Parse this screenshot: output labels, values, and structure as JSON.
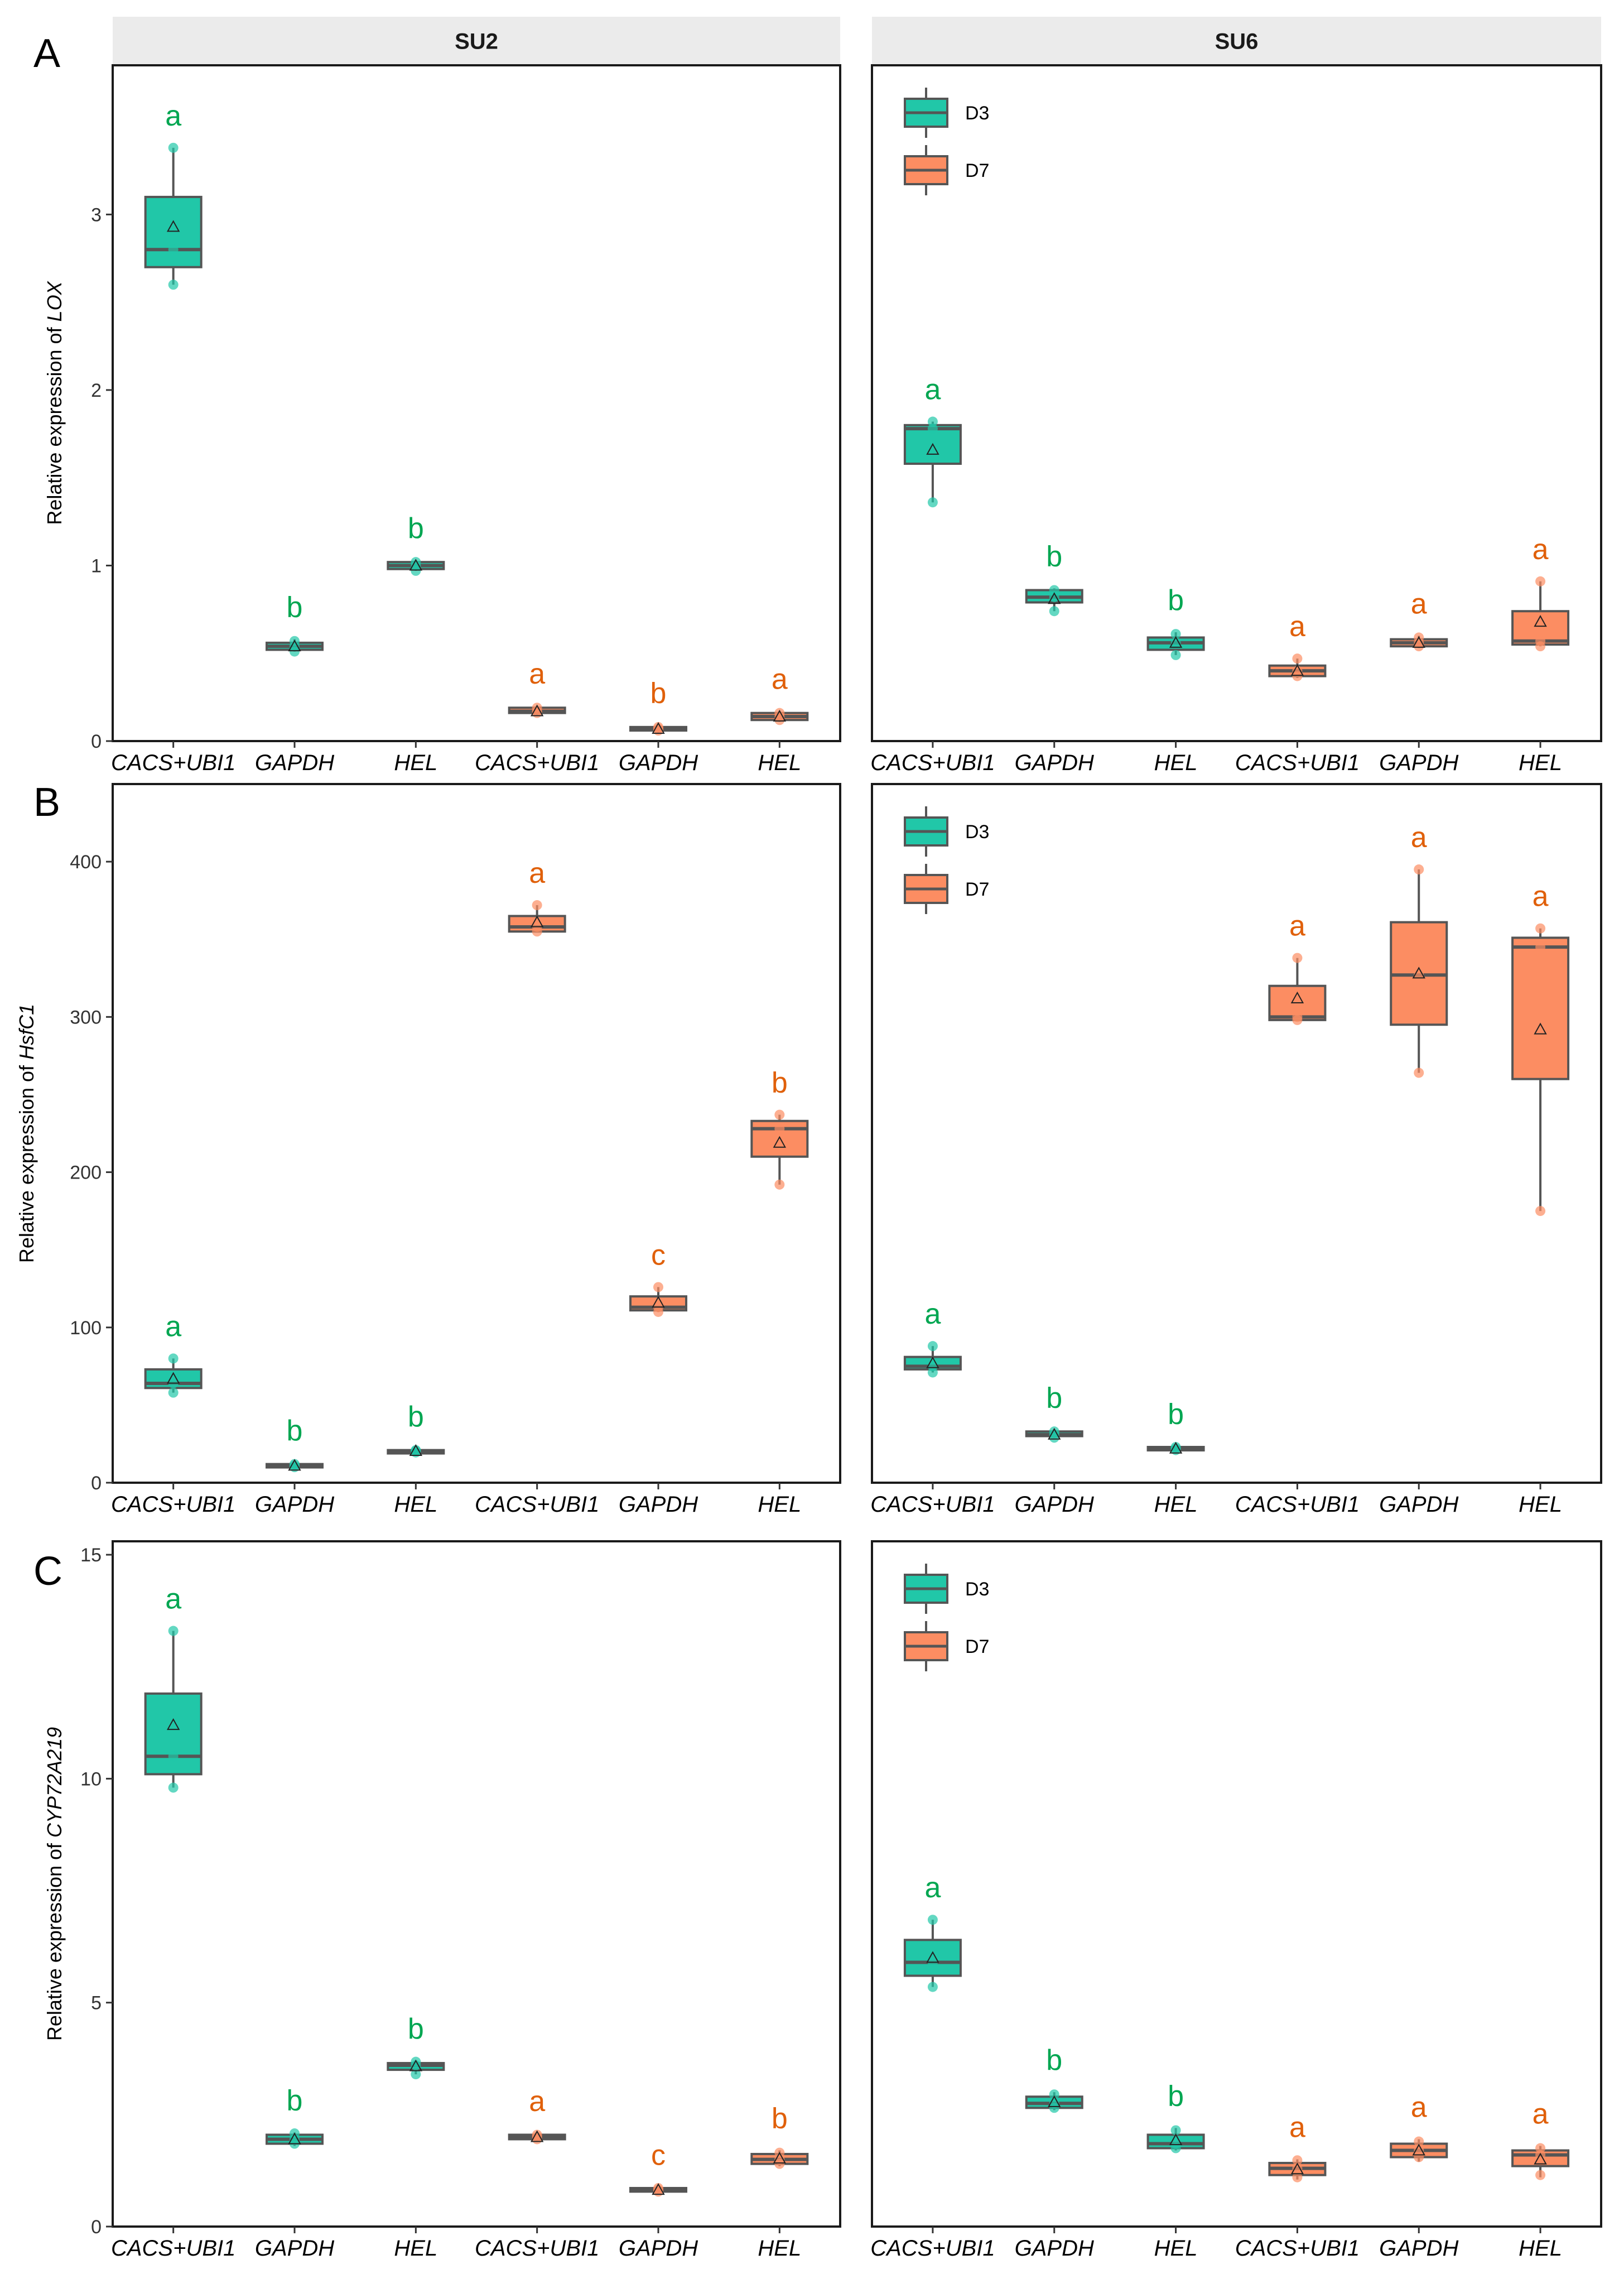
{
  "facet_titles": [
    "SU2",
    "SU6"
  ],
  "panel_letters": [
    "A",
    "B",
    "C"
  ],
  "legend": [
    {
      "label": "D3",
      "color": "#21C7A8"
    },
    {
      "label": "D7",
      "color": "#FC8D62"
    }
  ],
  "colors": {
    "D3": "#21C7A8",
    "D7": "#FC8D62",
    "letter_D3": "#00A651",
    "letter_D7": "#E0600A",
    "box_line": "#555555",
    "strip_bg": "#EBEBEB"
  },
  "categories": [
    "CACS+UBI1",
    "GAPDH",
    "HEL",
    "CACS+UBI1",
    "GAPDH",
    "HEL"
  ],
  "groups": [
    "D3",
    "D3",
    "D3",
    "D7",
    "D7",
    "D7"
  ],
  "chart_data": [
    {
      "type": "box",
      "panel": "A",
      "ylabel": "Relative expression of",
      "ygene": "LOX",
      "ylim": [
        0,
        3.85
      ],
      "yticks": [
        0,
        1,
        2,
        3
      ],
      "ytick_labels": [
        "0",
        "1",
        "2",
        "3"
      ],
      "facets": [
        {
          "title": "SU2",
          "legend": false,
          "boxes": [
            {
              "q1": 2.7,
              "med": 2.8,
              "q3": 3.1,
              "lo": 2.6,
              "hi": 3.38,
              "mean": 2.93,
              "pts": [
                2.6,
                2.8,
                3.38
              ],
              "letter": "a"
            },
            {
              "q1": 0.52,
              "med": 0.54,
              "q3": 0.56,
              "lo": 0.51,
              "hi": 0.58,
              "mean": 0.54,
              "pts": [
                0.51,
                0.54,
                0.57
              ],
              "letter": "b"
            },
            {
              "q1": 0.98,
              "med": 1.0,
              "q3": 1.02,
              "lo": 0.97,
              "hi": 1.03,
              "mean": 1.0,
              "pts": [
                0.97,
                1.0,
                1.02
              ],
              "letter": "b"
            },
            {
              "q1": 0.16,
              "med": 0.17,
              "q3": 0.19,
              "lo": 0.15,
              "hi": 0.2,
              "mean": 0.17,
              "pts": [
                0.16,
                0.17,
                0.19
              ],
              "letter": "a"
            },
            {
              "q1": 0.06,
              "med": 0.07,
              "q3": 0.08,
              "lo": 0.05,
              "hi": 0.09,
              "mean": 0.07,
              "pts": [
                0.06,
                0.07,
                0.08
              ],
              "letter": "b"
            },
            {
              "q1": 0.12,
              "med": 0.14,
              "q3": 0.16,
              "lo": 0.11,
              "hi": 0.17,
              "mean": 0.14,
              "pts": [
                0.12,
                0.14,
                0.16
              ],
              "letter": "a"
            }
          ]
        },
        {
          "title": "SU6",
          "legend": true,
          "boxes": [
            {
              "q1": 1.58,
              "med": 1.78,
              "q3": 1.8,
              "lo": 1.36,
              "hi": 1.82,
              "mean": 1.66,
              "pts": [
                1.36,
                1.78,
                1.82
              ],
              "letter": "a"
            },
            {
              "q1": 0.79,
              "med": 0.82,
              "q3": 0.86,
              "lo": 0.74,
              "hi": 0.87,
              "mean": 0.81,
              "pts": [
                0.74,
                0.82,
                0.86
              ],
              "letter": "b"
            },
            {
              "q1": 0.52,
              "med": 0.56,
              "q3": 0.59,
              "lo": 0.49,
              "hi": 0.62,
              "mean": 0.56,
              "pts": [
                0.49,
                0.56,
                0.61
              ],
              "letter": "b"
            },
            {
              "q1": 0.37,
              "med": 0.4,
              "q3": 0.43,
              "lo": 0.36,
              "hi": 0.47,
              "mean": 0.4,
              "pts": [
                0.37,
                0.4,
                0.47
              ],
              "letter": "a"
            },
            {
              "q1": 0.54,
              "med": 0.56,
              "q3": 0.58,
              "lo": 0.53,
              "hi": 0.6,
              "mean": 0.56,
              "pts": [
                0.54,
                0.56,
                0.59
              ],
              "letter": "a"
            },
            {
              "q1": 0.55,
              "med": 0.57,
              "q3": 0.74,
              "lo": 0.54,
              "hi": 0.91,
              "mean": 0.68,
              "pts": [
                0.54,
                0.57,
                0.91
              ],
              "letter": "a"
            }
          ]
        }
      ]
    },
    {
      "type": "box",
      "panel": "B",
      "ylabel": "Relative expression of",
      "ygene": "HsfC1",
      "ylim": [
        0,
        450
      ],
      "yticks": [
        0,
        100,
        200,
        300,
        400
      ],
      "ytick_labels": [
        "0",
        "100",
        "200",
        "300",
        "400"
      ],
      "facets": [
        {
          "title": "SU2",
          "legend": false,
          "boxes": [
            {
              "q1": 61,
              "med": 64,
              "q3": 73,
              "lo": 58,
              "hi": 80,
              "mean": 67,
              "pts": [
                58,
                64,
                80
              ],
              "letter": "a"
            },
            {
              "q1": 10,
              "med": 11,
              "q3": 12,
              "lo": 9,
              "hi": 13,
              "mean": 11,
              "pts": [
                10,
                11,
                12
              ],
              "letter": "b"
            },
            {
              "q1": 20,
              "med": 20.5,
              "q3": 21,
              "lo": 19,
              "hi": 22,
              "mean": 20.5,
              "pts": [
                19.5,
                20.5,
                21
              ],
              "letter": "b"
            },
            {
              "q1": 355,
              "med": 358,
              "q3": 365,
              "lo": 355,
              "hi": 372,
              "mean": 361,
              "pts": [
                355,
                358,
                372
              ],
              "letter": "a"
            },
            {
              "q1": 111,
              "med": 113,
              "q3": 120,
              "lo": 110,
              "hi": 126,
              "mean": 116,
              "pts": [
                110,
                113,
                126
              ],
              "letter": "c"
            },
            {
              "q1": 210,
              "med": 228,
              "q3": 233,
              "lo": 192,
              "hi": 237,
              "mean": 219,
              "pts": [
                192,
                228,
                237
              ],
              "letter": "b"
            }
          ]
        },
        {
          "title": "SU6",
          "legend": true,
          "boxes": [
            {
              "q1": 73,
              "med": 75,
              "q3": 81,
              "lo": 71,
              "hi": 88,
              "mean": 77,
              "pts": [
                71,
                75,
                88
              ],
              "letter": "a"
            },
            {
              "q1": 30,
              "med": 31,
              "q3": 33,
              "lo": 29,
              "hi": 34,
              "mean": 31,
              "pts": [
                29,
                31,
                33
              ],
              "letter": "b"
            },
            {
              "q1": 21,
              "med": 22,
              "q3": 23,
              "lo": 20,
              "hi": 23.5,
              "mean": 22,
              "pts": [
                21,
                22,
                23
              ],
              "letter": "b"
            },
            {
              "q1": 298,
              "med": 300,
              "q3": 320,
              "lo": 298,
              "hi": 338,
              "mean": 312,
              "pts": [
                298,
                300,
                338
              ],
              "letter": "a"
            },
            {
              "q1": 295,
              "med": 327,
              "q3": 361,
              "lo": 264,
              "hi": 395,
              "mean": 328,
              "pts": [
                264,
                327,
                395
              ],
              "letter": "a"
            },
            {
              "q1": 260,
              "med": 345,
              "q3": 351,
              "lo": 175,
              "hi": 357,
              "mean": 292,
              "pts": [
                175,
                345,
                357
              ],
              "letter": "a"
            }
          ]
        }
      ]
    },
    {
      "type": "box",
      "panel": "C",
      "ylabel": "Relative expression of",
      "ygene": "CYP72A219",
      "ylim": [
        0,
        15.3
      ],
      "yticks": [
        0,
        5,
        10,
        15
      ],
      "ytick_labels": [
        "0",
        "5",
        "10",
        "15"
      ],
      "facets": [
        {
          "title": "SU2",
          "legend": false,
          "boxes": [
            {
              "q1": 10.1,
              "med": 10.5,
              "q3": 11.9,
              "lo": 9.8,
              "hi": 13.3,
              "mean": 11.2,
              "pts": [
                9.8,
                10.5,
                13.3
              ],
              "letter": "a"
            },
            {
              "q1": 1.85,
              "med": 1.95,
              "q3": 2.05,
              "lo": 1.8,
              "hi": 2.1,
              "mean": 1.95,
              "pts": [
                1.85,
                1.95,
                2.08
              ],
              "letter": "b"
            },
            {
              "q1": 3.5,
              "med": 3.6,
              "q3": 3.65,
              "lo": 3.4,
              "hi": 3.7,
              "mean": 3.58,
              "pts": [
                3.4,
                3.6,
                3.68
              ],
              "letter": "b"
            },
            {
              "q1": 1.95,
              "med": 2.0,
              "q3": 2.05,
              "lo": 1.92,
              "hi": 2.08,
              "mean": 2.0,
              "pts": [
                1.95,
                2.0,
                2.05
              ],
              "letter": "a"
            },
            {
              "q1": 0.78,
              "med": 0.82,
              "q3": 0.86,
              "lo": 0.75,
              "hi": 0.88,
              "mean": 0.82,
              "pts": [
                0.78,
                0.82,
                0.86
              ],
              "letter": "c"
            },
            {
              "q1": 1.4,
              "med": 1.5,
              "q3": 1.62,
              "lo": 1.35,
              "hi": 1.7,
              "mean": 1.52,
              "pts": [
                1.4,
                1.5,
                1.65
              ],
              "letter": "b"
            }
          ]
        },
        {
          "title": "SU6",
          "legend": true,
          "boxes": [
            {
              "q1": 5.6,
              "med": 5.9,
              "q3": 6.4,
              "lo": 5.35,
              "hi": 6.85,
              "mean": 6.0,
              "pts": [
                5.35,
                5.9,
                6.85
              ],
              "letter": "a"
            },
            {
              "q1": 2.65,
              "med": 2.75,
              "q3": 2.9,
              "lo": 2.6,
              "hi": 3.0,
              "mean": 2.78,
              "pts": [
                2.65,
                2.75,
                2.95
              ],
              "letter": "b"
            },
            {
              "q1": 1.75,
              "med": 1.85,
              "q3": 2.05,
              "lo": 1.7,
              "hi": 2.2,
              "mean": 1.93,
              "pts": [
                1.75,
                1.85,
                2.15
              ],
              "letter": "b"
            },
            {
              "q1": 1.15,
              "med": 1.3,
              "q3": 1.42,
              "lo": 1.05,
              "hi": 1.5,
              "mean": 1.28,
              "pts": [
                1.1,
                1.3,
                1.48
              ],
              "letter": "a"
            },
            {
              "q1": 1.55,
              "med": 1.7,
              "q3": 1.85,
              "lo": 1.45,
              "hi": 1.95,
              "mean": 1.7,
              "pts": [
                1.55,
                1.7,
                1.9
              ],
              "letter": "a"
            },
            {
              "q1": 1.35,
              "med": 1.6,
              "q3": 1.7,
              "lo": 1.1,
              "hi": 1.8,
              "mean": 1.5,
              "pts": [
                1.15,
                1.6,
                1.75
              ],
              "letter": "a"
            }
          ]
        }
      ]
    }
  ]
}
